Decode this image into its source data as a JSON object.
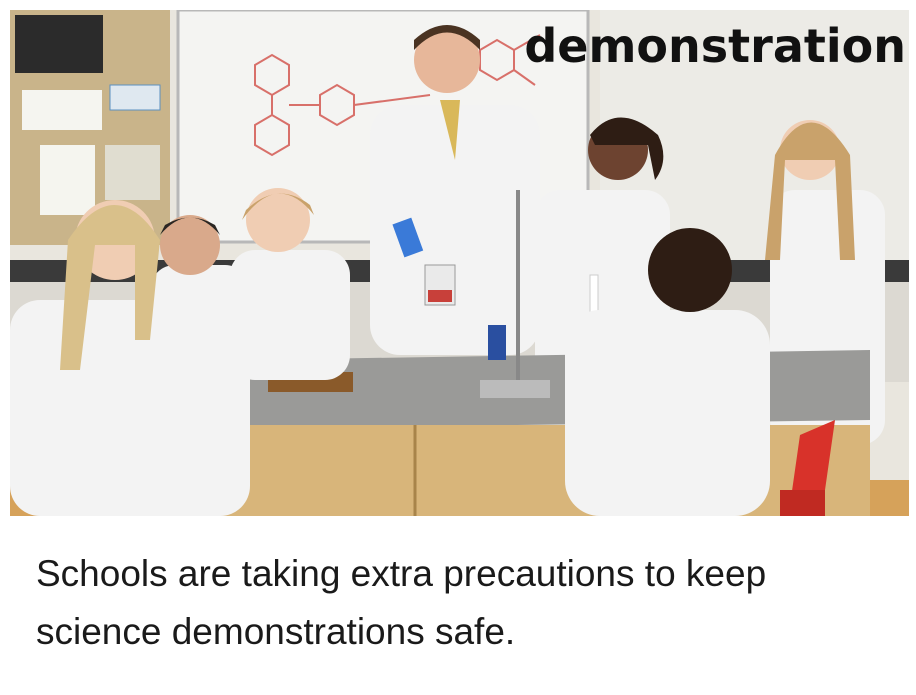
{
  "card": {
    "word": "demonstration",
    "caption": "Schools are taking extra precautions to keep science demonstrations safe."
  },
  "photo": {
    "subject": "science-classroom",
    "colors": {
      "whiteboard": "#f4f4f2",
      "wall": "#e9e6de",
      "corkboard": "#c9b48a",
      "counter_top": "#9a9a98",
      "cabinet": "#d8b57a",
      "lab_coat": "#f3f3f3",
      "chair_red": "#d8322a",
      "formula_red": "#d8706a"
    }
  }
}
